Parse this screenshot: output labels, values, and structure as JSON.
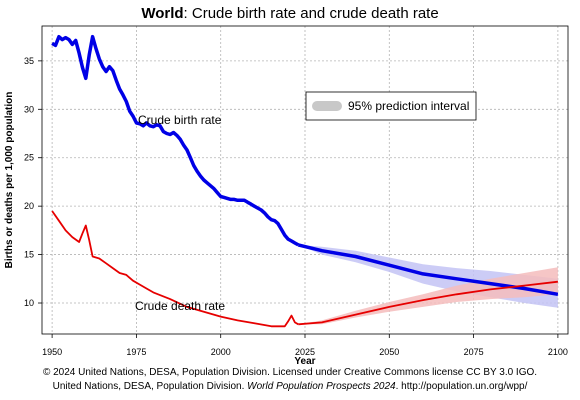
{
  "chart_data": {
    "type": "line",
    "title_bold": "World",
    "title_rest": ": Crude birth rate and crude death rate",
    "xlabel": "Year",
    "ylabel": "Births or deaths per 1,000 population",
    "xlim": [
      1947,
      2103
    ],
    "ylim": [
      6.8,
      38.6
    ],
    "xticks": [
      1950,
      1975,
      2000,
      2025,
      2050,
      2075,
      2100
    ],
    "yticks": [
      10,
      15,
      20,
      25,
      30,
      35
    ],
    "grid": true,
    "legend": {
      "label": "95% prediction interval",
      "placement": "top-right",
      "color": "#c8c8c8"
    },
    "series": [
      {
        "name": "Crude birth rate",
        "color": "#0000e6",
        "band_color": "#c3c3f5",
        "estimates": {
          "x": [
            1950,
            1951,
            1952,
            1953,
            1954,
            1955,
            1956,
            1957,
            1958,
            1959,
            1960,
            1961,
            1962,
            1963,
            1964,
            1965,
            1966,
            1967,
            1968,
            1969,
            1970,
            1971,
            1972,
            1973,
            1974,
            1975,
            1976,
            1977,
            1978,
            1979,
            1980,
            1981,
            1982,
            1983,
            1984,
            1985,
            1986,
            1987,
            1988,
            1989,
            1990,
            1991,
            1992,
            1993,
            1994,
            1995,
            1996,
            1997,
            1998,
            1999,
            2000,
            2001,
            2002,
            2003,
            2004,
            2005,
            2006,
            2007,
            2008,
            2009,
            2010,
            2011,
            2012,
            2013,
            2014,
            2015,
            2016,
            2017,
            2018,
            2019,
            2020,
            2021,
            2022,
            2023
          ],
          "y": [
            36.8,
            36.6,
            37.5,
            37.2,
            37.4,
            37.2,
            36.7,
            37.1,
            35.8,
            34.3,
            33.2,
            35.6,
            37.5,
            36.3,
            35.2,
            34.4,
            33.9,
            34.4,
            34.0,
            33.0,
            32.1,
            31.5,
            30.8,
            29.8,
            29.3,
            28.6,
            28.5,
            28.3,
            28.6,
            28.3,
            28.2,
            28.4,
            28.3,
            27.7,
            27.5,
            27.4,
            27.6,
            27.3,
            26.9,
            26.3,
            25.8,
            25.0,
            24.2,
            23.6,
            23.1,
            22.7,
            22.4,
            22.1,
            21.8,
            21.4,
            21.0,
            20.9,
            20.8,
            20.7,
            20.7,
            20.6,
            20.6,
            20.6,
            20.4,
            20.2,
            20.0,
            19.8,
            19.6,
            19.3,
            18.9,
            18.6,
            18.5,
            18.2,
            17.6,
            17.0,
            16.6,
            16.4,
            16.2,
            16.0
          ]
        },
        "projection": {
          "x": [
            2023,
            2030,
            2040,
            2050,
            2060,
            2070,
            2080,
            2090,
            2100
          ],
          "y": [
            16.0,
            15.4,
            14.8,
            13.9,
            13.0,
            12.5,
            12.0,
            11.5,
            10.9
          ],
          "lower": [
            16.0,
            15.0,
            14.2,
            13.2,
            12.0,
            11.2,
            10.6,
            10.0,
            9.5
          ],
          "upper": [
            16.0,
            15.8,
            15.4,
            14.7,
            14.0,
            13.6,
            13.3,
            12.9,
            12.5
          ]
        }
      },
      {
        "name": "Crude death rate",
        "color": "#e60000",
        "band_color": "#f5bcbc",
        "estimates": {
          "x": [
            1950,
            1952,
            1954,
            1956,
            1958,
            1959,
            1960,
            1961,
            1962,
            1964,
            1966,
            1968,
            1970,
            1972,
            1974,
            1976,
            1978,
            1980,
            1985,
            1990,
            1995,
            2000,
            2005,
            2010,
            2015,
            2019,
            2020,
            2021,
            2022,
            2023
          ],
          "y": [
            19.5,
            18.5,
            17.5,
            16.8,
            16.3,
            17.2,
            18.0,
            16.5,
            14.8,
            14.6,
            14.1,
            13.6,
            13.1,
            12.9,
            12.3,
            11.9,
            11.5,
            11.1,
            10.4,
            9.6,
            9.1,
            8.6,
            8.2,
            7.9,
            7.6,
            7.6,
            8.1,
            8.7,
            8.0,
            7.8
          ]
        },
        "projection": {
          "x": [
            2023,
            2030,
            2040,
            2050,
            2060,
            2070,
            2080,
            2090,
            2100
          ],
          "y": [
            7.8,
            8.0,
            8.8,
            9.6,
            10.3,
            10.9,
            11.4,
            11.8,
            12.2
          ],
          "lower": [
            7.8,
            7.8,
            8.5,
            9.1,
            9.6,
            10.1,
            10.4,
            10.6,
            10.9
          ],
          "upper": [
            7.8,
            8.2,
            9.2,
            10.1,
            10.9,
            11.8,
            12.5,
            13.1,
            13.7
          ]
        }
      }
    ]
  },
  "footer": {
    "line1": "© 2024 United Nations, DESA, Population Division. Licensed under Creative Commons license CC BY 3.0 IGO.",
    "line2_pre": "United Nations, DESA, Population Division. ",
    "line2_italic": "World Population Prospects 2024",
    "line2_post": ". http://population.un.org/wpp/"
  }
}
